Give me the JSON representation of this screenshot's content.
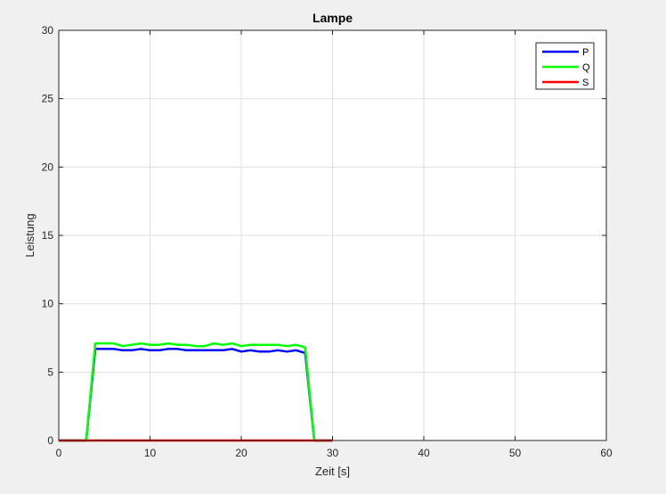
{
  "chart_data": {
    "type": "line",
    "title": "Lampe",
    "xlabel": "Zeit [s]",
    "ylabel": "Leistung",
    "xlim": [
      0,
      60
    ],
    "ylim": [
      0,
      30
    ],
    "xticks": [
      0,
      10,
      20,
      30,
      40,
      50,
      60
    ],
    "yticks": [
      0,
      5,
      10,
      15,
      20,
      25,
      30
    ],
    "grid": true,
    "legend_position": "top-right",
    "series": [
      {
        "name": "P",
        "color": "#0000ff",
        "x": [
          0,
          1,
          2,
          3,
          4,
          5,
          6,
          7,
          8,
          9,
          10,
          11,
          12,
          13,
          14,
          15,
          16,
          17,
          18,
          19,
          20,
          21,
          22,
          23,
          24,
          25,
          26,
          27,
          28,
          29,
          30
        ],
        "y": [
          0,
          0,
          0,
          0,
          6.7,
          6.7,
          6.7,
          6.6,
          6.6,
          6.7,
          6.6,
          6.6,
          6.7,
          6.7,
          6.6,
          6.6,
          6.6,
          6.6,
          6.6,
          6.7,
          6.5,
          6.6,
          6.5,
          6.5,
          6.6,
          6.5,
          6.6,
          6.4,
          0,
          0,
          0
        ]
      },
      {
        "name": "Q",
        "color": "#00ff00",
        "x": [
          0,
          1,
          2,
          3,
          4,
          5,
          6,
          7,
          8,
          9,
          10,
          11,
          12,
          13,
          14,
          15,
          16,
          17,
          18,
          19,
          20,
          21,
          22,
          23,
          24,
          25,
          26,
          27,
          28,
          29,
          30
        ],
        "y": [
          0,
          0,
          0,
          0,
          7.1,
          7.1,
          7.1,
          6.9,
          7.0,
          7.1,
          7.0,
          7.0,
          7.1,
          7.0,
          7.0,
          6.9,
          6.9,
          7.1,
          7.0,
          7.1,
          6.9,
          7.0,
          7.0,
          7.0,
          7.0,
          6.9,
          7.0,
          6.8,
          0,
          0,
          0
        ]
      },
      {
        "name": "S",
        "color": "#ff0000",
        "x": [
          0,
          1,
          2,
          3,
          4,
          5,
          6,
          7,
          8,
          9,
          10,
          11,
          12,
          13,
          14,
          15,
          16,
          17,
          18,
          19,
          20,
          21,
          22,
          23,
          24,
          25,
          26,
          27,
          28,
          29,
          30
        ],
        "y": [
          0,
          0,
          0,
          0,
          0,
          0,
          0,
          0,
          0,
          0,
          0,
          0,
          0,
          0,
          0,
          0,
          0,
          0,
          0,
          0,
          0,
          0,
          0,
          0,
          0,
          0,
          0,
          0,
          0,
          0,
          0
        ]
      }
    ]
  }
}
